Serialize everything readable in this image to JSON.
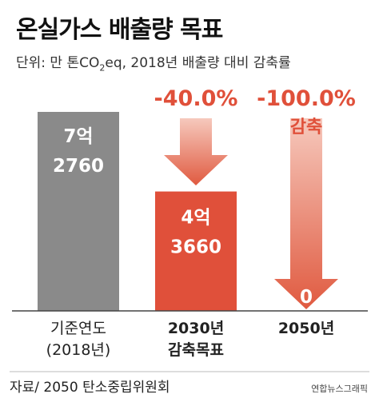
{
  "header": {
    "title": "온실가스 배출량 목표",
    "unit_prefix": "단위: 만 톤CO",
    "unit_sub": "2",
    "unit_suffix": "eq, 2018년 배출량 대비 감축률"
  },
  "chart_data": {
    "type": "bar",
    "categories": [
      [
        "기준연도",
        "(2018년)"
      ],
      [
        "2030년",
        "감축목표"
      ],
      [
        "2050년"
      ]
    ],
    "values": [
      72760,
      43660,
      0
    ],
    "value_labels": [
      [
        "7억",
        "2760"
      ],
      [
        "4억",
        "3660"
      ],
      [
        "0"
      ]
    ],
    "reduction_labels": [
      "",
      "-40.0%",
      "-100.0%"
    ],
    "reduction_sub": [
      "",
      "",
      "감축"
    ],
    "ylim": [
      0,
      72760
    ],
    "colors": {
      "base": "#8a8a8a",
      "accent": "#e0503a",
      "arrow_light": "#f6c9bd",
      "arrow_dark": "#e05a40",
      "axis": "#444444"
    }
  },
  "footer": {
    "source": "자료/ 2050 탄소중립위원회",
    "credit": "연합뉴스그래픽"
  }
}
